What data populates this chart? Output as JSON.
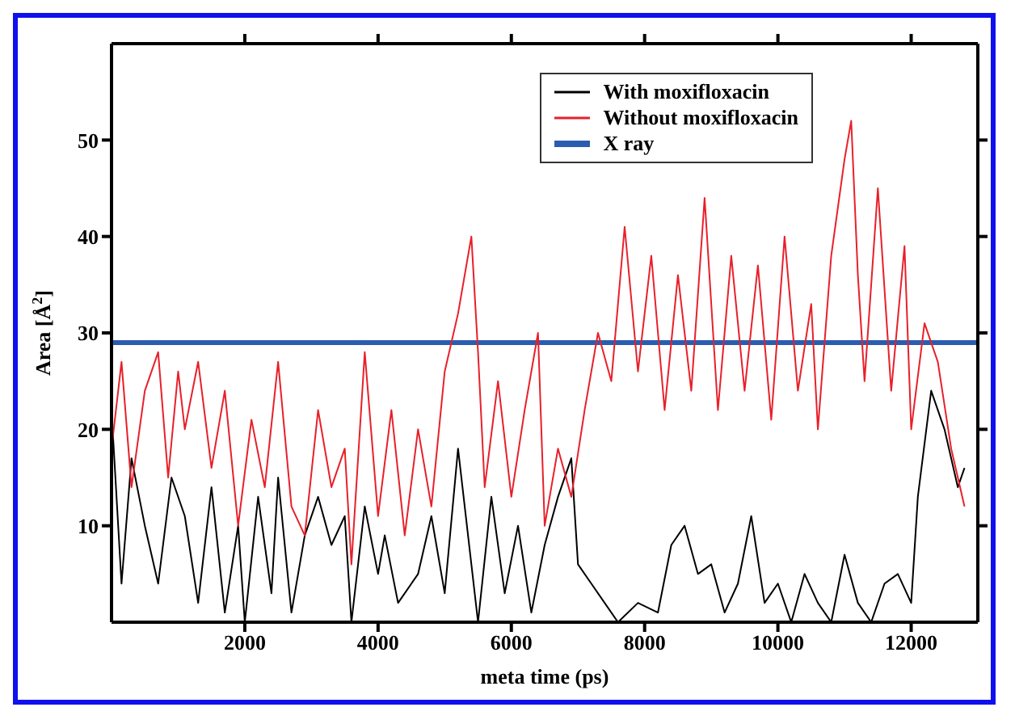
{
  "chart_data": {
    "type": "line",
    "xlabel": "meta time (ps)",
    "ylabel": "Area [Å$^{2}$]",
    "xlim": [
      0,
      13000
    ],
    "xticks": [
      2000,
      4000,
      6000,
      8000,
      10000,
      12000
    ],
    "ylim": [
      0,
      60
    ],
    "yticks": [
      10,
      20,
      30,
      40,
      50
    ],
    "legend": "top right",
    "marker": "none",
    "line_style": "solid",
    "ref_lines": [
      {
        "axis": "y",
        "value": 29,
        "label": "X ray",
        "color": "#2a5db0"
      }
    ],
    "series": [
      {
        "name": "With moxifloxacin",
        "color": "#000000",
        "x": [
          0,
          150,
          300,
          500,
          700,
          900,
          1100,
          1300,
          1500,
          1700,
          1900,
          2000,
          2200,
          2400,
          2500,
          2700,
          2900,
          3100,
          3300,
          3500,
          3600,
          3800,
          4000,
          4100,
          4300,
          4600,
          4800,
          5000,
          5200,
          5400,
          5500,
          5700,
          5900,
          6100,
          6300,
          6500,
          6700,
          6900,
          7000,
          7200,
          7400,
          7600,
          7900,
          8200,
          8400,
          8600,
          8800,
          9000,
          9200,
          9400,
          9600,
          9800,
          10000,
          10200,
          10400,
          10600,
          10800,
          11000,
          11200,
          11400,
          11600,
          11800,
          12000,
          12100,
          12300,
          12500,
          12700,
          12800
        ],
        "values": [
          22,
          4,
          17,
          10,
          4,
          15,
          11,
          2,
          14,
          1,
          10,
          0,
          13,
          3,
          15,
          1,
          9,
          13,
          8,
          11,
          0,
          12,
          5,
          9,
          2,
          5,
          11,
          3,
          18,
          6,
          0,
          13,
          3,
          10,
          1,
          8,
          13,
          17,
          6,
          4,
          2,
          0,
          2,
          1,
          8,
          10,
          5,
          6,
          1,
          4,
          11,
          2,
          4,
          0,
          5,
          2,
          0,
          7,
          2,
          0,
          4,
          5,
          2,
          13,
          24,
          20,
          14,
          16
        ]
      },
      {
        "name": "Without moxifloxacin",
        "color": "#e8202a",
        "x": [
          0,
          150,
          300,
          500,
          700,
          850,
          1000,
          1100,
          1300,
          1500,
          1700,
          1900,
          2100,
          2300,
          2500,
          2700,
          2900,
          3100,
          3300,
          3500,
          3600,
          3800,
          4000,
          4200,
          4400,
          4600,
          4800,
          5000,
          5200,
          5400,
          5500,
          5600,
          5800,
          6000,
          6200,
          6400,
          6500,
          6700,
          6900,
          7100,
          7300,
          7500,
          7700,
          7900,
          8100,
          8300,
          8500,
          8700,
          8900,
          9100,
          9300,
          9500,
          9700,
          9900,
          10100,
          10300,
          10500,
          10600,
          10800,
          11000,
          11100,
          11200,
          11300,
          11500,
          11700,
          11900,
          12000,
          12200,
          12400,
          12600,
          12800
        ],
        "values": [
          18,
          27,
          14,
          24,
          28,
          15,
          26,
          20,
          27,
          16,
          24,
          10,
          21,
          14,
          27,
          12,
          9,
          22,
          14,
          18,
          6,
          28,
          11,
          22,
          9,
          20,
          12,
          26,
          32,
          40,
          28,
          14,
          25,
          13,
          22,
          30,
          10,
          18,
          13,
          22,
          30,
          25,
          41,
          26,
          38,
          22,
          36,
          24,
          44,
          22,
          38,
          24,
          37,
          21,
          40,
          24,
          33,
          20,
          38,
          48,
          52,
          36,
          25,
          45,
          24,
          39,
          20,
          31,
          27,
          18,
          12
        ]
      }
    ]
  }
}
